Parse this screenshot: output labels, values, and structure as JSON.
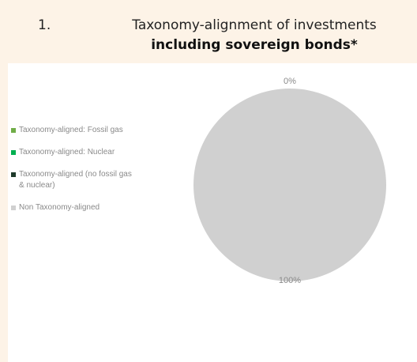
{
  "heading": {
    "number": "1.",
    "line1": "Taxonomy-alignment of investments",
    "line2": "including sovereign bonds*"
  },
  "chart_data": {
    "type": "pie",
    "title": "Taxonomy-alignment of investments including sovereign bonds*",
    "legend_position": "left",
    "slices": [
      {
        "label": "Taxonomy-aligned: Fossil gas",
        "value": 0,
        "color": "#70ad47"
      },
      {
        "label": "Taxonomy-aligned: Nuclear",
        "value": 0,
        "color": "#00b050"
      },
      {
        "label": "Taxonomy-aligned (no fossil gas & nuclear)",
        "value": 0,
        "color": "#1e3a2a"
      },
      {
        "label": "Non Taxonomy-aligned",
        "value": 100,
        "color": "#d0d0d0"
      }
    ],
    "data_labels": [
      "0%",
      "100%"
    ]
  }
}
